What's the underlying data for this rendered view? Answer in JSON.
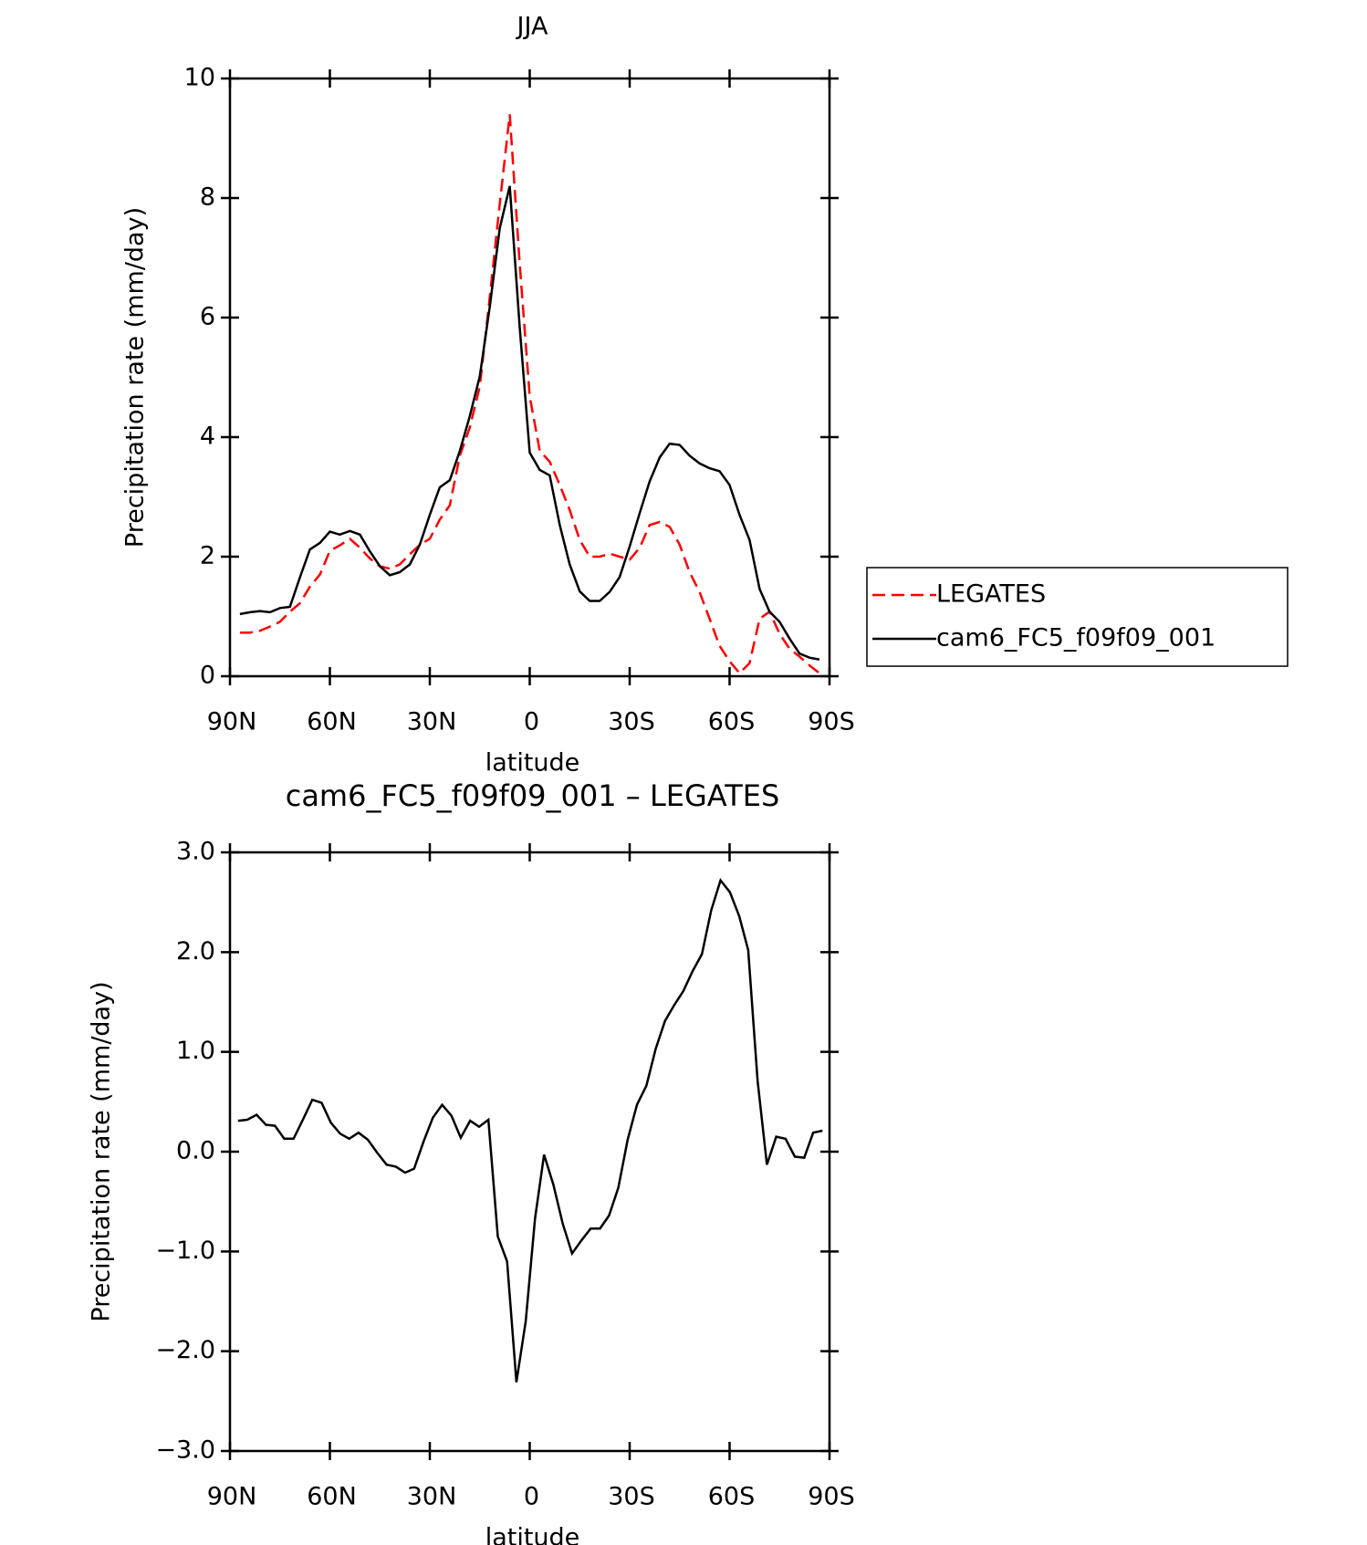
{
  "chart_data": [
    {
      "type": "line",
      "title": "JJA",
      "xlabel": "latitude",
      "ylabel": "Precipitation rate (mm/day)",
      "x": [
        87,
        84,
        81,
        78,
        75,
        72,
        69,
        66,
        63,
        60,
        57,
        54,
        51,
        48,
        45,
        42,
        39,
        36,
        33,
        30,
        27,
        24,
        21,
        18,
        15,
        12,
        9,
        6,
        3,
        0,
        -3,
        -6,
        -9,
        -12,
        -15,
        -18,
        -21,
        -24,
        -27,
        -30,
        -33,
        -36,
        -39,
        -42,
        -45,
        -48,
        -51,
        -54,
        -57,
        -60,
        -63,
        -66,
        -69,
        -72,
        -75,
        -78,
        -81,
        -84,
        -87
      ],
      "xlim": [
        90,
        -90
      ],
      "xticks": [
        {
          "value": 90,
          "label": "90N"
        },
        {
          "value": 60,
          "label": "60N"
        },
        {
          "value": 30,
          "label": "30N"
        },
        0,
        {
          "value": -30,
          "label": "30S"
        },
        {
          "value": -60,
          "label": "60S"
        },
        {
          "value": -90,
          "label": "90S"
        }
      ],
      "ylim": [
        0,
        10
      ],
      "yticks": [
        0,
        2,
        4,
        6,
        8,
        10
      ],
      "legend": "right",
      "series": [
        {
          "name": "LEGATES",
          "color": "#ff0000",
          "dash": true,
          "values": [
            0.73,
            0.73,
            0.76,
            0.83,
            0.91,
            1.08,
            1.22,
            1.5,
            1.7,
            2.1,
            2.19,
            2.3,
            2.15,
            1.97,
            1.84,
            1.8,
            1.87,
            2.04,
            2.2,
            2.3,
            2.62,
            2.86,
            3.69,
            4.16,
            4.85,
            6.34,
            7.91,
            9.4,
            6.9,
            4.68,
            3.77,
            3.59,
            3.2,
            2.78,
            2.28,
            2.0,
            2.0,
            2.05,
            2.0,
            1.95,
            2.15,
            2.53,
            2.58,
            2.5,
            2.2,
            1.74,
            1.41,
            0.96,
            0.51,
            0.25,
            0.05,
            0.22,
            0.96,
            1.08,
            0.71,
            0.46,
            0.33,
            0.18,
            0.05
          ]
        },
        {
          "name": "cam6_FC5_f09f09_001",
          "color": "#000000",
          "dash": false,
          "values": [
            1.04,
            1.07,
            1.09,
            1.07,
            1.14,
            1.16,
            1.65,
            2.12,
            2.23,
            2.42,
            2.37,
            2.43,
            2.37,
            2.09,
            1.84,
            1.69,
            1.74,
            1.87,
            2.2,
            2.7,
            3.16,
            3.28,
            3.77,
            4.35,
            5.02,
            6.18,
            7.5,
            8.2,
            5.84,
            3.74,
            3.45,
            3.36,
            2.53,
            1.87,
            1.42,
            1.26,
            1.26,
            1.41,
            1.66,
            2.17,
            2.73,
            3.26,
            3.66,
            3.89,
            3.87,
            3.69,
            3.56,
            3.48,
            3.43,
            3.2,
            2.7,
            2.28,
            1.46,
            1.08,
            0.91,
            0.63,
            0.38,
            0.31,
            0.28
          ]
        }
      ]
    },
    {
      "type": "line",
      "title": "cam6_FC5_f09f09_001 – LEGATES",
      "xlabel": "latitude",
      "ylabel": "Precipitation rate (mm/day)",
      "x": [
        87.6,
        84.8,
        82.0,
        79.2,
        76.5,
        73.7,
        70.9,
        68.1,
        65.3,
        62.5,
        59.7,
        56.9,
        54.2,
        51.4,
        48.6,
        45.8,
        43.0,
        40.2,
        37.4,
        34.7,
        31.9,
        29.1,
        26.3,
        23.5,
        20.7,
        17.9,
        15.2,
        12.4,
        9.6,
        6.8,
        4.0,
        1.2,
        -1.6,
        -4.3,
        -7.1,
        -9.9,
        -12.7,
        -15.5,
        -18.3,
        -21.1,
        -23.8,
        -26.6,
        -29.4,
        -32.2,
        -35.0,
        -37.8,
        -40.6,
        -43.4,
        -46.1,
        -48.9,
        -51.7,
        -54.5,
        -57.3,
        -60.1,
        -62.9,
        -65.6,
        -68.4,
        -71.2,
        -74.0,
        -76.8,
        -79.6,
        -82.4,
        -85.1,
        -87.9
      ],
      "xlim": [
        90,
        -90
      ],
      "xticks": [
        {
          "value": 90,
          "label": "90N"
        },
        {
          "value": 60,
          "label": "60N"
        },
        {
          "value": 30,
          "label": "30N"
        },
        0,
        {
          "value": -30,
          "label": "30S"
        },
        {
          "value": -60,
          "label": "60S"
        },
        {
          "value": -90,
          "label": "90S"
        }
      ],
      "ylim": [
        -3,
        3
      ],
      "yticks": [
        {
          "value": -3,
          "label": "−3.0"
        },
        {
          "value": -2,
          "label": "−2.0"
        },
        {
          "value": -1,
          "label": "−1.0"
        },
        {
          "value": 0,
          "label": "0.0"
        },
        {
          "value": 1,
          "label": "1.0"
        },
        {
          "value": 2,
          "label": "2.0"
        },
        {
          "value": 3,
          "label": "3.0"
        }
      ],
      "color": "#000000",
      "values": [
        0.31,
        0.32,
        0.37,
        0.27,
        0.26,
        0.13,
        0.13,
        0.32,
        0.52,
        0.49,
        0.29,
        0.18,
        0.13,
        0.19,
        0.12,
        -0.01,
        -0.13,
        -0.15,
        -0.21,
        -0.17,
        0.1,
        0.34,
        0.47,
        0.36,
        0.14,
        0.31,
        0.25,
        0.32,
        -0.85,
        -1.1,
        -2.31,
        -1.7,
        -0.67,
        -0.03,
        -0.33,
        -0.72,
        -1.02,
        -0.89,
        -0.77,
        -0.77,
        -0.64,
        -0.36,
        0.12,
        0.47,
        0.66,
        1.03,
        1.31,
        1.47,
        1.61,
        1.81,
        1.98,
        2.42,
        2.72,
        2.6,
        2.36,
        2.02,
        0.71,
        -0.13,
        0.15,
        0.13,
        -0.05,
        -0.06,
        0.19,
        0.21
      ]
    }
  ]
}
